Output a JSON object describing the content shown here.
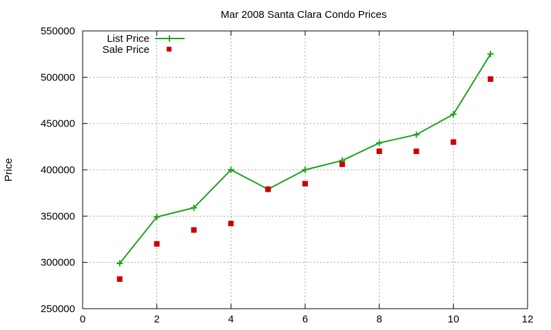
{
  "chart_data": {
    "type": "line",
    "title": "Mar 2008 Santa Clara Condo Prices",
    "xlabel": "",
    "ylabel": "Price",
    "xlim": [
      0,
      12
    ],
    "ylim": [
      250000,
      550000
    ],
    "xticks": [
      "0",
      "2",
      "4",
      "6",
      "8",
      "10",
      "12"
    ],
    "yticks": [
      "250000",
      "300000",
      "350000",
      "400000",
      "450000",
      "500000",
      "550000"
    ],
    "grid": true,
    "legend_position": "top-left",
    "series": [
      {
        "name": "List Price",
        "style": "line-with-plus-markers",
        "color": "#1aa31a",
        "x": [
          1,
          2,
          3,
          4,
          5,
          6,
          7,
          8,
          9,
          10,
          11
        ],
        "y": [
          299000,
          349000,
          359000,
          400000,
          379000,
          400000,
          410000,
          429000,
          438000,
          460000,
          525000
        ]
      },
      {
        "name": "Sale Price",
        "style": "square-markers",
        "color": "#cc0000",
        "x": [
          1,
          2,
          3,
          4,
          5,
          6,
          7,
          8,
          9,
          10,
          11
        ],
        "y": [
          282000,
          320000,
          335000,
          342000,
          379000,
          385000,
          406000,
          420000,
          420000,
          430000,
          498000
        ]
      }
    ]
  }
}
